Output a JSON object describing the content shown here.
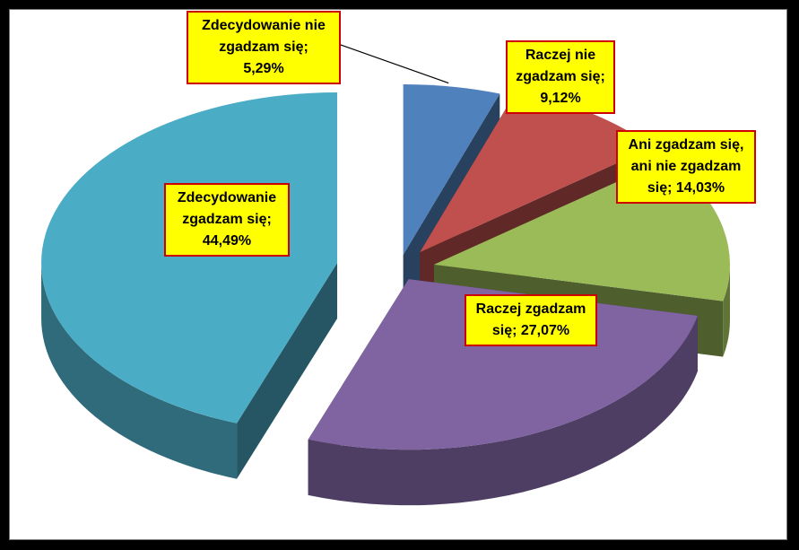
{
  "chart_data": {
    "type": "pie",
    "exploded": true,
    "three_d": true,
    "slices": [
      {
        "name": "Zdecydowanie nie zgadzam się",
        "value": 5.29,
        "label": [
          "Zdecydowanie nie",
          "zgadzam się;",
          "5,29%"
        ],
        "color": "#4f81bd"
      },
      {
        "name": "Raczej nie zgadzam się",
        "value": 9.12,
        "label": [
          "Raczej nie",
          "zgadzam się;",
          "9,12%"
        ],
        "color": "#c0504d"
      },
      {
        "name": "Ani zgadzam się, ani nie zgadzam się",
        "value": 14.03,
        "label": [
          "Ani zgadzam się,",
          "ani nie zgadzam",
          "się; 14,03%"
        ],
        "color": "#9bbb59"
      },
      {
        "name": "Raczej zgadzam się",
        "value": 27.07,
        "label": [
          "Raczej zgadzam",
          "się; 27,07%"
        ],
        "color": "#8064a2"
      },
      {
        "name": "Zdecydowanie zgadzam się",
        "value": 44.49,
        "label": [
          "Zdecydowanie",
          "zgadzam się;",
          "44,49%"
        ],
        "color": "#4bacc6"
      }
    ]
  }
}
